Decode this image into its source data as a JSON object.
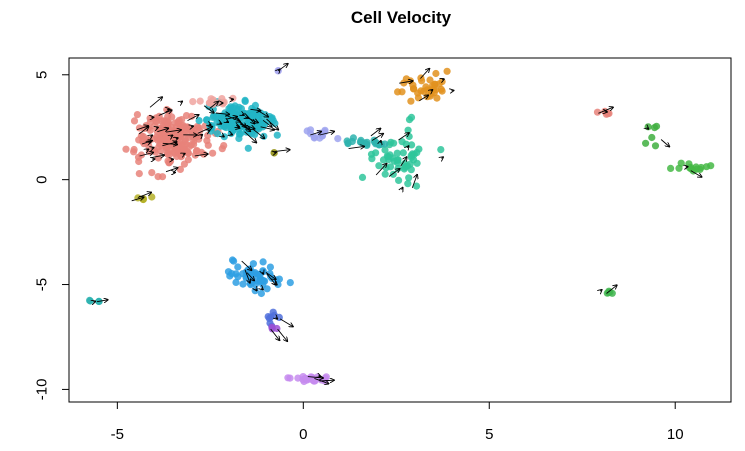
{
  "chart_data": {
    "type": "scatter",
    "title": "Cell Velocity",
    "xlabel": "",
    "ylabel": "",
    "xlim": [
      -6.3,
      11.5
    ],
    "ylim": [
      -10.6,
      5.8
    ],
    "x_ticks": [
      -5,
      0,
      5,
      10
    ],
    "x_tick_labels": [
      "-5",
      "0",
      "5",
      "10"
    ],
    "y_ticks": [
      -10,
      -5,
      0,
      5
    ],
    "y_tick_labels": [
      "-10",
      "-5",
      "0",
      "5"
    ],
    "grid": false,
    "legend": "none",
    "arrow_color": "#000000",
    "clusters": [
      {
        "color": "#E7837A",
        "center": [
          -3.5,
          2.0
        ],
        "spread": [
          0.8,
          1.0
        ],
        "n": 210,
        "dir": [
          0.3,
          0.1
        ]
      },
      {
        "color": "#22B5C5",
        "center": [
          -1.8,
          2.8
        ],
        "spread": [
          0.75,
          0.65
        ],
        "n": 150,
        "dir": [
          0.4,
          -0.2
        ]
      },
      {
        "color": "#F0A5A0",
        "center": [
          -2.3,
          3.7
        ],
        "spread": [
          0.35,
          0.2
        ],
        "n": 14,
        "dir": [
          0.3,
          0.1
        ]
      },
      {
        "color": "#9DA3EE",
        "center": [
          0.4,
          2.2
        ],
        "spread": [
          0.35,
          0.25
        ],
        "n": 12,
        "dir": [
          0.4,
          0.0
        ]
      },
      {
        "color": "#A9A9F0",
        "center": [
          -0.7,
          5.2
        ],
        "spread": [
          0.05,
          0.05
        ],
        "n": 2,
        "dir": [
          0.1,
          0.1
        ]
      },
      {
        "color": "#B5B028",
        "center": [
          -4.4,
          -0.9
        ],
        "spread": [
          0.2,
          0.1
        ],
        "n": 5,
        "dir": [
          0.3,
          0.1
        ]
      },
      {
        "color": "#9C9B26",
        "center": [
          -0.8,
          1.3
        ],
        "spread": [
          0.05,
          0.05
        ],
        "n": 2,
        "dir": [
          0.2,
          0.0
        ]
      },
      {
        "color": "#E2921F",
        "center": [
          3.2,
          4.4
        ],
        "spread": [
          0.6,
          0.5
        ],
        "n": 35,
        "dir": [
          0.4,
          0.2
        ]
      },
      {
        "color": "#2FC59B",
        "center": [
          2.5,
          1.0
        ],
        "spread": [
          0.7,
          1.2
        ],
        "n": 55,
        "dir": [
          0.2,
          0.3
        ]
      },
      {
        "color": "#2FB3AE",
        "center": [
          1.7,
          1.8
        ],
        "spread": [
          0.6,
          0.2
        ],
        "n": 20,
        "dir": [
          0.3,
          0.1
        ]
      },
      {
        "color": "#45B845",
        "center": [
          10.5,
          0.6
        ],
        "spread": [
          0.5,
          0.15
        ],
        "n": 14,
        "dir": [
          0.4,
          -0.1
        ]
      },
      {
        "color": "#3FAF3F",
        "center": [
          9.3,
          2.2
        ],
        "spread": [
          0.3,
          0.7
        ],
        "n": 6,
        "dir": [
          0.3,
          -0.3
        ]
      },
      {
        "color": "#E7837A",
        "center": [
          8.1,
          3.2
        ],
        "spread": [
          0.15,
          0.1
        ],
        "n": 5,
        "dir": [
          0.3,
          0.0
        ]
      },
      {
        "color": "#3FB54E",
        "center": [
          8.2,
          -5.4
        ],
        "spread": [
          0.1,
          0.1
        ],
        "n": 5,
        "dir": [
          0.1,
          0.1
        ]
      },
      {
        "color": "#2E9FE3",
        "center": [
          -1.3,
          -4.7
        ],
        "spread": [
          0.65,
          0.6
        ],
        "n": 55,
        "dir": [
          0.3,
          -0.4
        ]
      },
      {
        "color": "#5070DC",
        "center": [
          -0.8,
          -6.5
        ],
        "spread": [
          0.2,
          0.3
        ],
        "n": 8,
        "dir": [
          0.3,
          -0.3
        ]
      },
      {
        "color": "#9A4FD3",
        "center": [
          -0.8,
          -7.1
        ],
        "spread": [
          0.1,
          0.1
        ],
        "n": 3,
        "dir": [
          0.2,
          -0.2
        ]
      },
      {
        "color": "#2BB2AF",
        "center": [
          -5.6,
          -5.8
        ],
        "spread": [
          0.15,
          0.1
        ],
        "n": 4,
        "dir": [
          0.2,
          0.1
        ]
      },
      {
        "color": "#C68BEF",
        "center": [
          0.1,
          -9.5
        ],
        "spread": [
          0.5,
          0.15
        ],
        "n": 22,
        "dir": [
          0.35,
          -0.05
        ]
      }
    ]
  }
}
